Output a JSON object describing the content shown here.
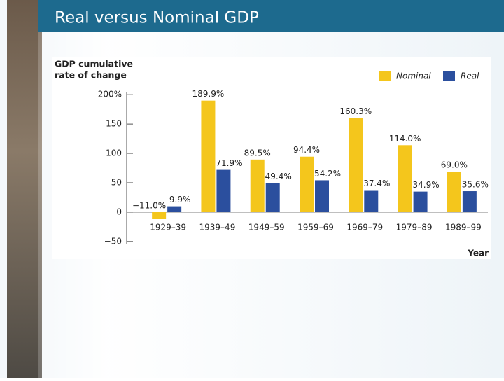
{
  "slide_title": "Real versus Nominal GDP",
  "chart_data": {
    "type": "bar",
    "ylabel": [
      "GDP cumulative",
      "rate of change"
    ],
    "xlabel": "Year",
    "categories": [
      "1929–39",
      "1939–49",
      "1949–59",
      "1959–69",
      "1969–79",
      "1979–89",
      "1989–99"
    ],
    "series": [
      {
        "name": "Nominal",
        "color": "#f4c61c",
        "values": [
          -11.0,
          189.9,
          89.5,
          94.4,
          160.3,
          114.0,
          69.0
        ],
        "value_labels": [
          "−11.0%",
          "189.9%",
          "89.5%",
          "94.4%",
          "160.3%",
          "114.0%",
          "69.0%"
        ]
      },
      {
        "name": "Real",
        "color": "#2b4f9e",
        "values": [
          9.9,
          71.9,
          49.4,
          54.2,
          37.4,
          34.9,
          35.6
        ],
        "value_labels": [
          "9.9%",
          "71.9%",
          "49.4%",
          "54.2%",
          "37.4%",
          "34.9%",
          "35.6%"
        ]
      }
    ],
    "ylim": [
      -55,
      205
    ],
    "yticks": [
      {
        "value": -50,
        "label": "−50"
      },
      0,
      50,
      100,
      150,
      {
        "value": 200,
        "label": "200%"
      }
    ],
    "legend": "top-right"
  }
}
